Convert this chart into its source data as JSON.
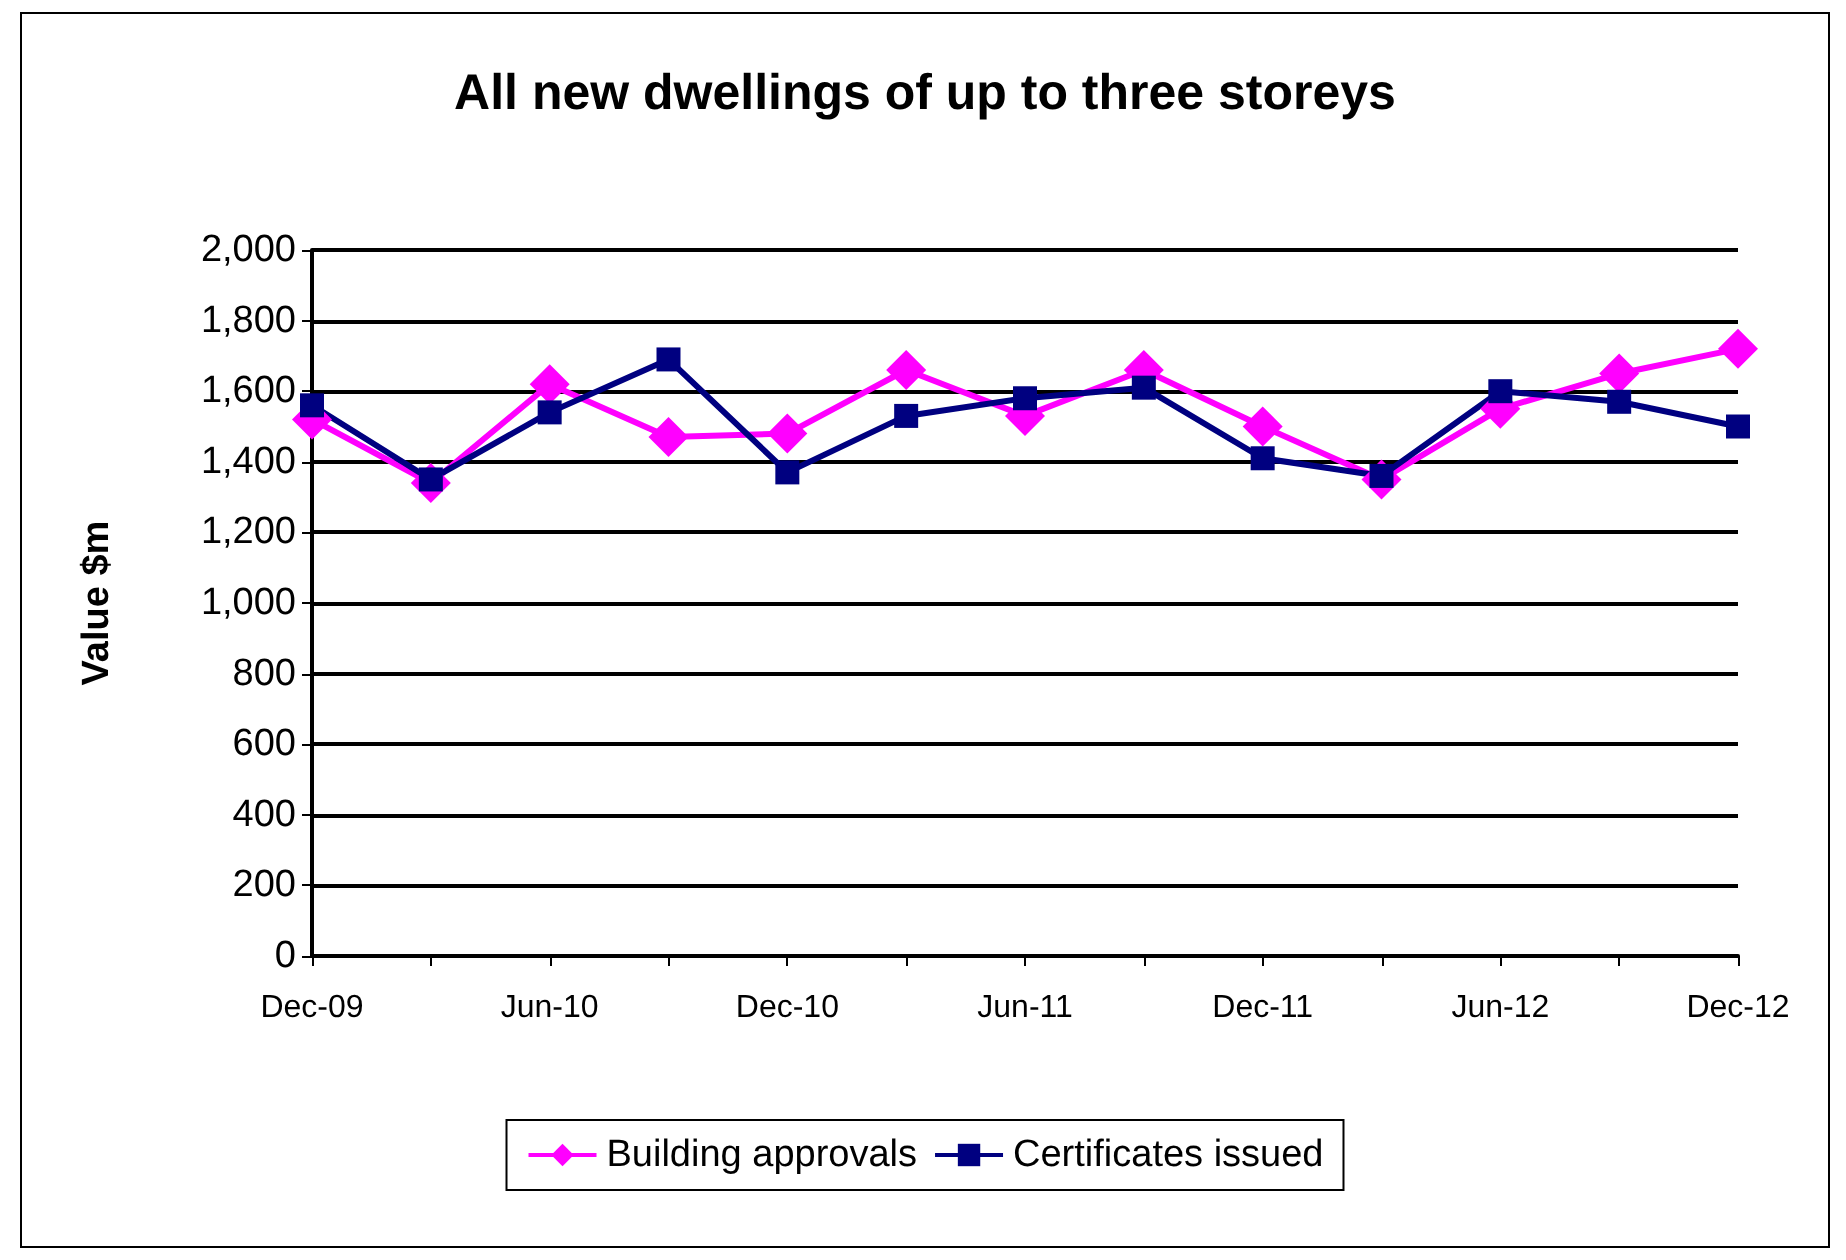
{
  "chart_data": {
    "type": "line",
    "title": "All new dwellings of up to three storeys",
    "ylabel": "Value $m",
    "categories": [
      "Dec-09",
      null,
      "Jun-10",
      null,
      "Dec-10",
      null,
      "Jun-11",
      null,
      "Dec-11",
      null,
      "Jun-12",
      null,
      "Dec-12"
    ],
    "series": [
      {
        "name": "Building approvals",
        "color": "#ff00ff",
        "marker": "diamond",
        "values": [
          1520,
          1340,
          1620,
          1470,
          1480,
          1660,
          1530,
          1660,
          1500,
          1350,
          1550,
          1650,
          1720
        ]
      },
      {
        "name": "Certificates issued",
        "color": "#000080",
        "marker": "square",
        "values": [
          1560,
          1350,
          1540,
          1690,
          1370,
          1530,
          1580,
          1610,
          1410,
          1360,
          1600,
          1570,
          1500
        ]
      }
    ],
    "ylim": [
      0,
      2000
    ],
    "yticks": [
      0,
      200,
      400,
      600,
      800,
      {
        "value": 1000,
        "label": "1,000"
      },
      {
        "value": 1200,
        "label": "1,200"
      },
      {
        "value": 1400,
        "label": "1,400"
      },
      {
        "value": 1600,
        "label": "1,600"
      },
      {
        "value": 1800,
        "label": "1,800"
      },
      {
        "value": 2000,
        "label": "2,000"
      }
    ],
    "grid": "y",
    "legend": "bottom",
    "line_style": "solid"
  }
}
